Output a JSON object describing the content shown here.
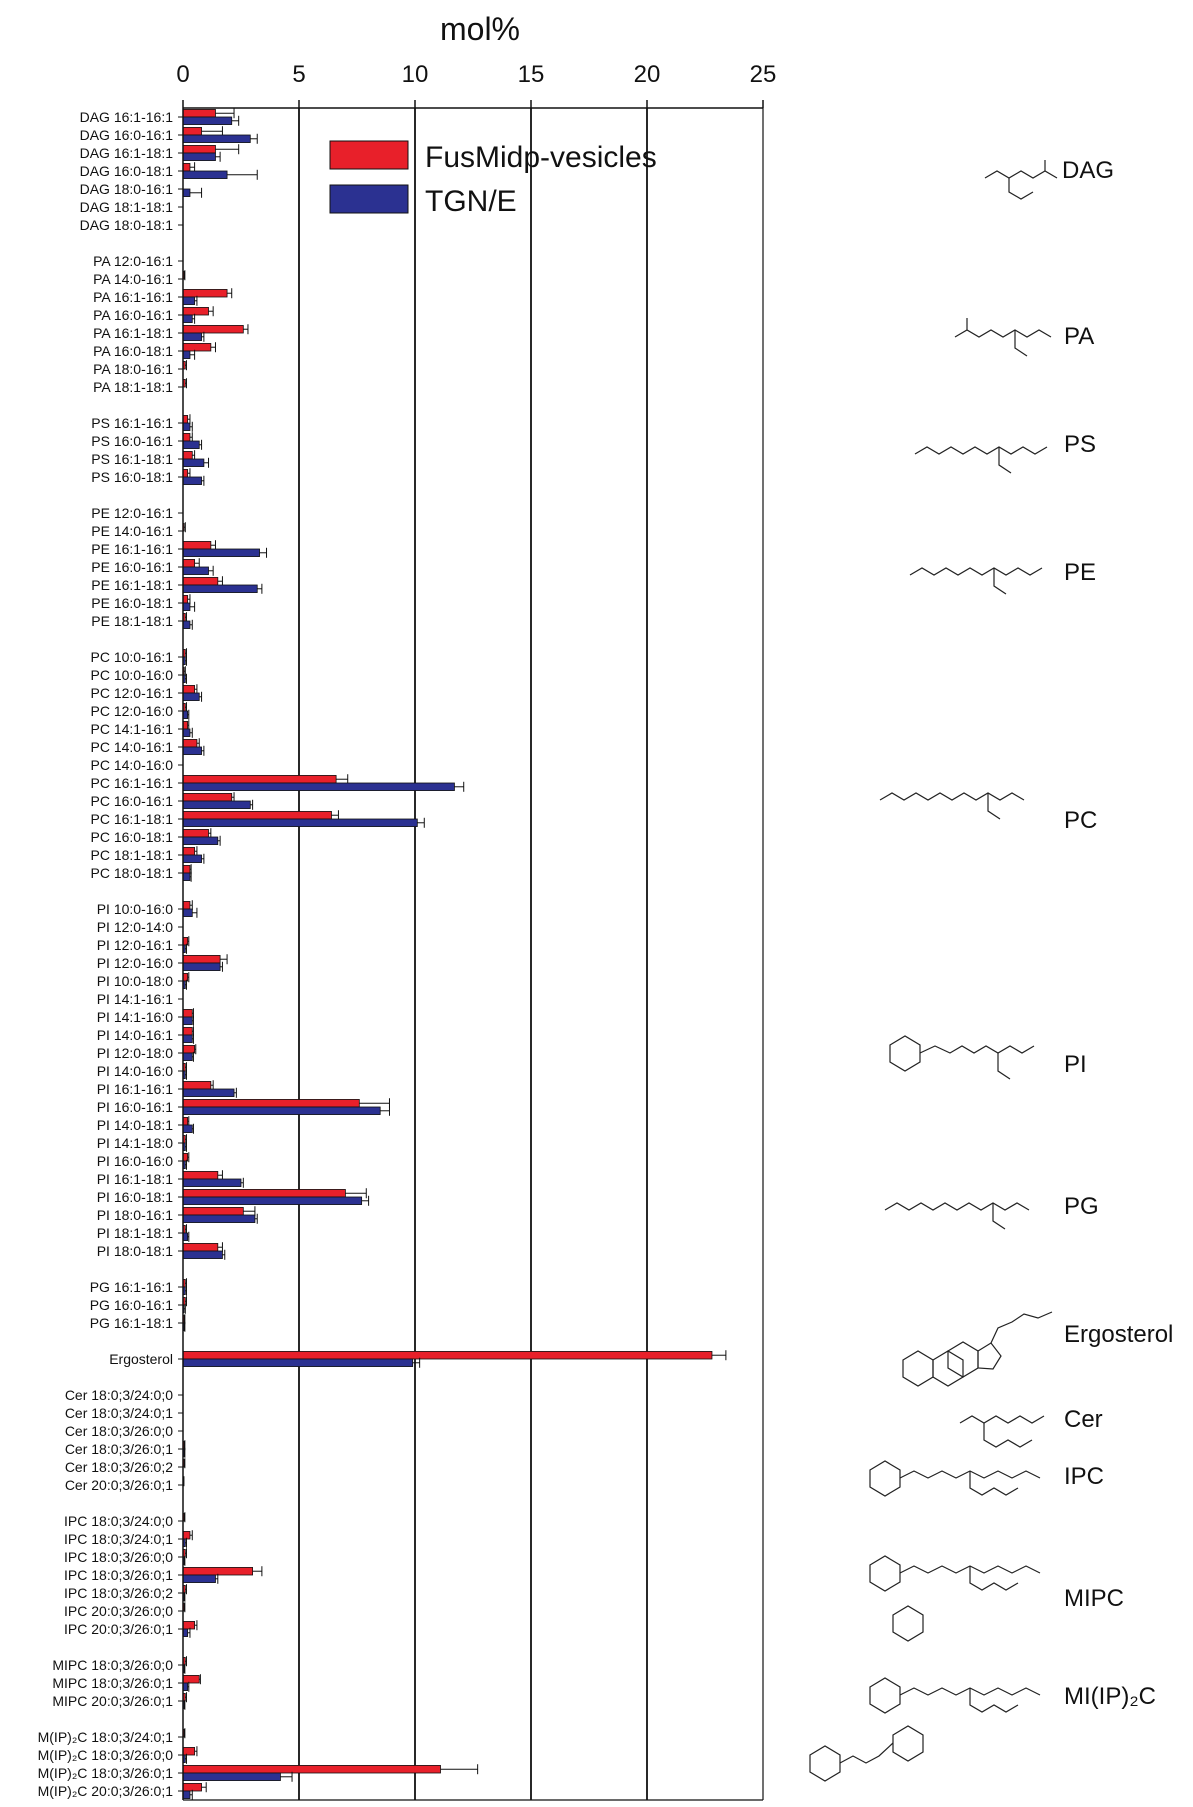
{
  "chart_data": {
    "type": "bar",
    "orientation": "horizontal",
    "xlabel": "mol%",
    "xlim": [
      0,
      25
    ],
    "xticks": [
      0,
      5,
      10,
      15,
      20,
      25
    ],
    "grid": "vertical lines at 5, 10, 15, 20",
    "legend_position": "top-inside",
    "colors": {
      "FusMidp-vesicles": "#e8202a",
      "TGN/E": "#2b3191"
    },
    "series": [
      {
        "name": "FusMidp-vesicles",
        "color": "#e8202a"
      },
      {
        "name": "TGN/E",
        "color": "#2b3191"
      }
    ],
    "categories": [
      {
        "label": "DAG 16:1-16:1",
        "values": [
          1.4,
          2.1
        ],
        "errors": [
          0.8,
          0.3
        ]
      },
      {
        "label": "DAG 16:0-16:1",
        "values": [
          0.8,
          2.9
        ],
        "errors": [
          0.9,
          0.3
        ]
      },
      {
        "label": "DAG 16:1-18:1",
        "values": [
          1.4,
          1.4
        ],
        "errors": [
          1.0,
          0.2
        ]
      },
      {
        "label": "DAG 16:0-18:1",
        "values": [
          0.3,
          1.9
        ],
        "errors": [
          0.2,
          1.3
        ]
      },
      {
        "label": "DAG 18:0-16:1",
        "values": [
          0.0,
          0.3
        ],
        "errors": [
          0.0,
          0.5
        ]
      },
      {
        "label": "DAG 18:1-18:1",
        "values": [
          0,
          0
        ],
        "errors": [
          0,
          0
        ]
      },
      {
        "label": "DAG 18:0-18:1",
        "values": [
          0,
          0
        ],
        "errors": [
          0,
          0
        ]
      },
      null,
      {
        "label": "PA 12:0-16:1",
        "values": [
          0,
          0
        ],
        "errors": [
          0,
          0
        ]
      },
      {
        "label": "PA 14:0-16:1",
        "values": [
          0.05,
          0
        ],
        "errors": [
          0.03,
          0
        ]
      },
      {
        "label": "PA 16:1-16:1",
        "values": [
          1.9,
          0.5
        ],
        "errors": [
          0.2,
          0.1
        ]
      },
      {
        "label": "PA 16:0-16:1",
        "values": [
          1.1,
          0.4
        ],
        "errors": [
          0.2,
          0.1
        ]
      },
      {
        "label": "PA 16:1-18:1",
        "values": [
          2.6,
          0.8
        ],
        "errors": [
          0.2,
          0.1
        ]
      },
      {
        "label": "PA 16:0-18:1",
        "values": [
          1.2,
          0.3
        ],
        "errors": [
          0.2,
          0.2
        ]
      },
      {
        "label": "PA 18:0-16:1",
        "values": [
          0.1,
          0
        ],
        "errors": [
          0.05,
          0
        ]
      },
      {
        "label": "PA 18:1-18:1",
        "values": [
          0.1,
          0
        ],
        "errors": [
          0.05,
          0
        ]
      },
      null,
      {
        "label": "PS 16:1-16:1",
        "values": [
          0.2,
          0.3
        ],
        "errors": [
          0.1,
          0.1
        ]
      },
      {
        "label": "PS 16:0-16:1",
        "values": [
          0.3,
          0.7
        ],
        "errors": [
          0.1,
          0.1
        ]
      },
      {
        "label": "PS 16:1-18:1",
        "values": [
          0.4,
          0.9
        ],
        "errors": [
          0.1,
          0.2
        ]
      },
      {
        "label": "PS 16:0-18:1",
        "values": [
          0.2,
          0.8
        ],
        "errors": [
          0.1,
          0.1
        ]
      },
      null,
      {
        "label": "PE 12:0-16:1",
        "values": [
          0,
          0
        ],
        "errors": [
          0,
          0
        ]
      },
      {
        "label": "PE 14:0-16:1",
        "values": [
          0.05,
          0
        ],
        "errors": [
          0.05,
          0
        ]
      },
      {
        "label": "PE 16:1-16:1",
        "values": [
          1.2,
          3.3
        ],
        "errors": [
          0.2,
          0.3
        ]
      },
      {
        "label": "PE 16:0-16:1",
        "values": [
          0.5,
          1.1
        ],
        "errors": [
          0.2,
          0.2
        ]
      },
      {
        "label": "PE 16:1-18:1",
        "values": [
          1.5,
          3.2
        ],
        "errors": [
          0.2,
          0.2
        ]
      },
      {
        "label": "PE 16:0-18:1",
        "values": [
          0.2,
          0.3
        ],
        "errors": [
          0.1,
          0.2
        ]
      },
      {
        "label": "PE 18:1-18:1",
        "values": [
          0.1,
          0.3
        ],
        "errors": [
          0.05,
          0.1
        ]
      },
      null,
      {
        "label": "PC 10:0-16:1",
        "values": [
          0.1,
          0.1
        ],
        "errors": [
          0.05,
          0.05
        ]
      },
      {
        "label": "PC 10:0-16:0",
        "values": [
          0.05,
          0.1
        ],
        "errors": [
          0.05,
          0.05
        ]
      },
      {
        "label": "PC 12:0-16:1",
        "values": [
          0.5,
          0.7
        ],
        "errors": [
          0.1,
          0.1
        ]
      },
      {
        "label": "PC 12:0-16:0",
        "values": [
          0.1,
          0.2
        ],
        "errors": [
          0.05,
          0.05
        ]
      },
      {
        "label": "PC 14:1-16:1",
        "values": [
          0.2,
          0.3
        ],
        "errors": [
          0.05,
          0.1
        ]
      },
      {
        "label": "PC 14:0-16:1",
        "values": [
          0.6,
          0.8
        ],
        "errors": [
          0.1,
          0.1
        ]
      },
      {
        "label": "PC 14:0-16:0",
        "values": [
          0,
          0
        ],
        "errors": [
          0,
          0
        ]
      },
      {
        "label": "PC 16:1-16:1",
        "values": [
          6.6,
          11.7
        ],
        "errors": [
          0.5,
          0.4
        ]
      },
      {
        "label": "PC 16:0-16:1",
        "values": [
          2.1,
          2.9
        ],
        "errors": [
          0.1,
          0.1
        ]
      },
      {
        "label": "PC 16:1-18:1",
        "values": [
          6.4,
          10.1
        ],
        "errors": [
          0.3,
          0.3
        ]
      },
      {
        "label": "PC 16:0-18:1",
        "values": [
          1.1,
          1.5
        ],
        "errors": [
          0.1,
          0.1
        ]
      },
      {
        "label": "PC 18:1-18:1",
        "values": [
          0.5,
          0.8
        ],
        "errors": [
          0.1,
          0.1
        ]
      },
      {
        "label": "PC 18:0-18:1",
        "values": [
          0.3,
          0.3
        ],
        "errors": [
          0.05,
          0.05
        ]
      },
      null,
      {
        "label": "PI 10:0-16:0",
        "values": [
          0.3,
          0.4
        ],
        "errors": [
          0.1,
          0.2
        ]
      },
      {
        "label": "PI 12:0-14:0",
        "values": [
          0,
          0
        ],
        "errors": [
          0,
          0
        ]
      },
      {
        "label": "PI 12:0-16:1",
        "values": [
          0.2,
          0.1
        ],
        "errors": [
          0.05,
          0.05
        ]
      },
      {
        "label": "PI 12:0-16:0",
        "values": [
          1.6,
          1.6
        ],
        "errors": [
          0.3,
          0.1
        ]
      },
      {
        "label": "PI 10:0-18:0",
        "values": [
          0.2,
          0.1
        ],
        "errors": [
          0.05,
          0.05
        ]
      },
      {
        "label": "PI 14:1-16:1",
        "values": [
          0,
          0
        ],
        "errors": [
          0,
          0
        ]
      },
      {
        "label": "PI 14:1-16:0",
        "values": [
          0.4,
          0.4
        ],
        "errors": [
          0.05,
          0.05
        ]
      },
      {
        "label": "PI 14:0-16:1",
        "values": [
          0.4,
          0.4
        ],
        "errors": [
          0.05,
          0.05
        ]
      },
      {
        "label": "PI 12:0-18:0",
        "values": [
          0.5,
          0.4
        ],
        "errors": [
          0.05,
          0.05
        ]
      },
      {
        "label": "PI 14:0-16:0",
        "values": [
          0.1,
          0.1
        ],
        "errors": [
          0.05,
          0.05
        ]
      },
      {
        "label": "PI 16:1-16:1",
        "values": [
          1.2,
          2.2
        ],
        "errors": [
          0.1,
          0.1
        ]
      },
      {
        "label": "PI 16:0-16:1",
        "values": [
          7.6,
          8.5
        ],
        "errors": [
          1.3,
          0.4
        ]
      },
      {
        "label": "PI 14:0-18:1",
        "values": [
          0.2,
          0.4
        ],
        "errors": [
          0.05,
          0.05
        ]
      },
      {
        "label": "PI 14:1-18:0",
        "values": [
          0.1,
          0.1
        ],
        "errors": [
          0.05,
          0.05
        ]
      },
      {
        "label": "PI 16:0-16:0",
        "values": [
          0.2,
          0.1
        ],
        "errors": [
          0.05,
          0.05
        ]
      },
      {
        "label": "PI 16:1-18:1",
        "values": [
          1.5,
          2.5
        ],
        "errors": [
          0.2,
          0.1
        ]
      },
      {
        "label": "PI 16:0-18:1",
        "values": [
          7.0,
          7.7
        ],
        "errors": [
          0.9,
          0.3
        ]
      },
      {
        "label": "PI 18:0-16:1",
        "values": [
          2.6,
          3.1
        ],
        "errors": [
          0.5,
          0.1
        ]
      },
      {
        "label": "PI 18:1-18:1",
        "values": [
          0.1,
          0.2
        ],
        "errors": [
          0.05,
          0.05
        ]
      },
      {
        "label": "PI 18:0-18:1",
        "values": [
          1.5,
          1.7
        ],
        "errors": [
          0.2,
          0.1
        ]
      },
      null,
      {
        "label": "PG 16:1-16:1",
        "values": [
          0.1,
          0.1
        ],
        "errors": [
          0.05,
          0.05
        ]
      },
      {
        "label": "PG 16:0-16:1",
        "values": [
          0.1,
          0.05
        ],
        "errors": [
          0.05,
          0.05
        ]
      },
      {
        "label": "PG 16:1-18:1",
        "values": [
          0.05,
          0.05
        ],
        "errors": [
          0.03,
          0.03
        ]
      },
      null,
      {
        "label": "Ergosterol",
        "values": [
          22.8,
          9.9
        ],
        "errors": [
          0.6,
          0.3
        ]
      },
      null,
      {
        "label": "Cer 18:0;3/24:0;0",
        "values": [
          0,
          0
        ],
        "errors": [
          0,
          0
        ]
      },
      {
        "label": "Cer 18:0;3/24:0;1",
        "values": [
          0,
          0
        ],
        "errors": [
          0,
          0
        ]
      },
      {
        "label": "Cer 18:0;3/26:0;0",
        "values": [
          0,
          0
        ],
        "errors": [
          0,
          0
        ]
      },
      {
        "label": "Cer 18:0;3/26:0;1",
        "values": [
          0.05,
          0.05
        ],
        "errors": [
          0.03,
          0.03
        ]
      },
      {
        "label": "Cer 18:0;3/26:0;2",
        "values": [
          0.05,
          0
        ],
        "errors": [
          0.03,
          0
        ]
      },
      {
        "label": "Cer 20:0;3/26:0;1",
        "values": [
          0.02,
          0
        ],
        "errors": [
          0.02,
          0
        ]
      },
      null,
      {
        "label": "IPC 18:0;3/24:0;0",
        "values": [
          0.05,
          0
        ],
        "errors": [
          0.03,
          0
        ]
      },
      {
        "label": "IPC 18:0;3/24:0;1",
        "values": [
          0.3,
          0.1
        ],
        "errors": [
          0.1,
          0.05
        ]
      },
      {
        "label": "IPC 18:0;3/26:0;0",
        "values": [
          0.1,
          0.05
        ],
        "errors": [
          0.05,
          0.03
        ]
      },
      {
        "label": "IPC 18:0;3/26:0;1",
        "values": [
          3.0,
          1.4
        ],
        "errors": [
          0.4,
          0.1
        ]
      },
      {
        "label": "IPC 18:0;3/26:0;2",
        "values": [
          0.1,
          0.05
        ],
        "errors": [
          0.05,
          0.03
        ]
      },
      {
        "label": "IPC 20:0;3/26:0;0",
        "values": [
          0.05,
          0
        ],
        "errors": [
          0.03,
          0
        ]
      },
      {
        "label": "IPC 20:0;3/26:0;1",
        "values": [
          0.5,
          0.2
        ],
        "errors": [
          0.1,
          0.1
        ]
      },
      null,
      {
        "label": "MIPC 18:0;3/26:0;0",
        "values": [
          0.1,
          0.05
        ],
        "errors": [
          0.05,
          0.03
        ]
      },
      {
        "label": "MIPC 18:0;3/26:0;1",
        "values": [
          0.7,
          0.2
        ],
        "errors": [
          0.05,
          0.05
        ]
      },
      {
        "label": "MIPC 20:0;3/26:0;1",
        "values": [
          0.1,
          0.05
        ],
        "errors": [
          0.05,
          0.03
        ]
      },
      null,
      {
        "label": "M(IP)₂C 18:0;3/24:0;1",
        "values": [
          0.05,
          0
        ],
        "errors": [
          0.03,
          0
        ]
      },
      {
        "label": "M(IP)₂C 18:0;3/26:0;0",
        "values": [
          0.5,
          0.1
        ],
        "errors": [
          0.1,
          0.05
        ]
      },
      {
        "label": "M(IP)₂C 18:0;3/26:0;1",
        "values": [
          11.1,
          4.2
        ],
        "errors": [
          1.6,
          0.5
        ]
      },
      {
        "label": "M(IP)₂C 20:0;3/26:0;1",
        "values": [
          0.8,
          0.3
        ],
        "errors": [
          0.2,
          0.1
        ]
      }
    ]
  },
  "lipid_classes": [
    "DAG",
    "PA",
    "PS",
    "PE",
    "PC",
    "PI",
    "PG",
    "Ergosterol",
    "Cer",
    "IPC",
    "MIPC",
    "MI(IP)₂C"
  ]
}
